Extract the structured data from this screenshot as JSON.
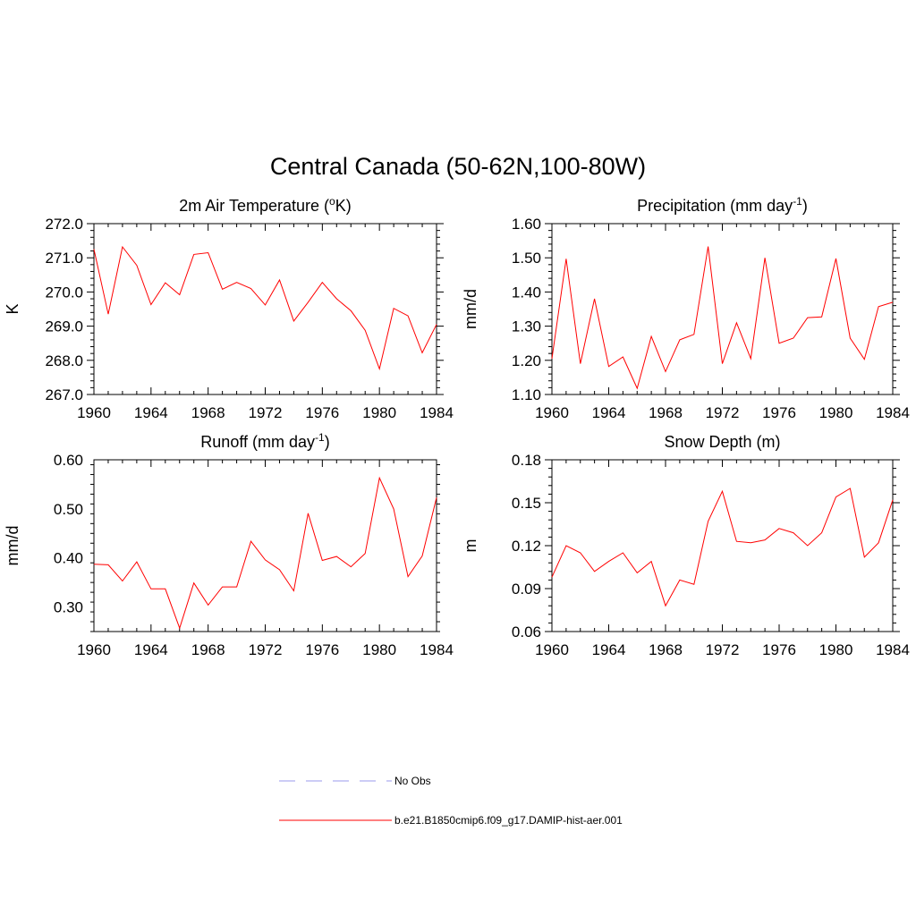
{
  "figure": {
    "title": "Central Canada (50-62N,100-80W)"
  },
  "legend": {
    "items": [
      {
        "label": "No Obs",
        "color": "#9999ee",
        "style": "dashed"
      },
      {
        "label": "b.e21.B1850cmip6.f09_g17.DAMIP-hist-aer.001",
        "color": "#ff0000",
        "style": "solid"
      }
    ]
  },
  "chart_data": [
    {
      "type": "line",
      "title": "2m Air Temperature (°K)",
      "title_parts": {
        "pre": "2m Air Temperature (",
        "sup": "o",
        "post": "K)"
      },
      "xlabel": "",
      "ylabel": "K",
      "xlim": [
        1960,
        1984
      ],
      "ylim": [
        267.0,
        272.0
      ],
      "xticks": [
        1960,
        1964,
        1968,
        1972,
        1976,
        1980,
        1984
      ],
      "xtick_labels": [
        "1960",
        "1964",
        "1968",
        "1972",
        "1976",
        "1980",
        "1984"
      ],
      "yticks": [
        267.0,
        268.0,
        269.0,
        270.0,
        271.0,
        272.0
      ],
      "ytick_labels": [
        "267.0",
        "268.0",
        "269.0",
        "270.0",
        "271.0",
        "272.0"
      ],
      "grid": false,
      "series": [
        {
          "name": "b.e21.B1850cmip6.f09_g17.DAMIP-hist-aer.001",
          "color": "#ff0000",
          "x": [
            1960,
            1961,
            1962,
            1963,
            1964,
            1965,
            1966,
            1967,
            1968,
            1969,
            1970,
            1971,
            1972,
            1973,
            1974,
            1975,
            1976,
            1977,
            1978,
            1979,
            1980,
            1981,
            1982,
            1983,
            1984
          ],
          "values": [
            271.25,
            269.35,
            271.32,
            270.78,
            269.63,
            270.27,
            269.92,
            271.1,
            271.15,
            270.08,
            270.28,
            270.1,
            269.62,
            270.35,
            269.15,
            269.7,
            270.28,
            269.8,
            269.45,
            268.88,
            267.75,
            269.52,
            269.3,
            268.22,
            269.05
          ]
        }
      ]
    },
    {
      "type": "line",
      "title": "Precipitation (mm day-1)",
      "title_parts": {
        "pre": "Precipitation (mm day",
        "sup": "-1",
        "post": ")"
      },
      "xlabel": "",
      "ylabel": "mm/d",
      "xlim": [
        1960,
        1984
      ],
      "ylim": [
        1.1,
        1.6
      ],
      "xticks": [
        1960,
        1964,
        1968,
        1972,
        1976,
        1980,
        1984
      ],
      "xtick_labels": [
        "1960",
        "1964",
        "1968",
        "1972",
        "1976",
        "1980",
        "1984"
      ],
      "yticks": [
        1.1,
        1.2,
        1.3,
        1.4,
        1.5,
        1.6
      ],
      "ytick_labels": [
        "1.10",
        "1.20",
        "1.30",
        "1.40",
        "1.50",
        "1.60"
      ],
      "grid": false,
      "series": [
        {
          "name": "b.e21.B1850cmip6.f09_g17.DAMIP-hist-aer.001",
          "color": "#ff0000",
          "x": [
            1960,
            1961,
            1962,
            1963,
            1964,
            1965,
            1966,
            1967,
            1968,
            1969,
            1970,
            1971,
            1972,
            1973,
            1974,
            1975,
            1976,
            1977,
            1978,
            1979,
            1980,
            1981,
            1982,
            1983,
            1984
          ],
          "values": [
            1.205,
            1.497,
            1.19,
            1.38,
            1.182,
            1.21,
            1.118,
            1.27,
            1.167,
            1.26,
            1.276,
            1.533,
            1.19,
            1.31,
            1.205,
            1.5,
            1.25,
            1.265,
            1.325,
            1.327,
            1.498,
            1.265,
            1.203,
            1.357,
            1.37
          ]
        }
      ]
    },
    {
      "type": "line",
      "title": "Runoff (mm day-1)",
      "title_parts": {
        "pre": "Runoff (mm day",
        "sup": "-1",
        "post": ")"
      },
      "xlabel": "",
      "ylabel": "mm/d",
      "xlim": [
        1960,
        1984
      ],
      "ylim": [
        0.25,
        0.6
      ],
      "xticks": [
        1960,
        1964,
        1968,
        1972,
        1976,
        1980,
        1984
      ],
      "xtick_labels": [
        "1960",
        "1964",
        "1968",
        "1972",
        "1976",
        "1980",
        "1984"
      ],
      "yticks": [
        0.3,
        0.4,
        0.5,
        0.6
      ],
      "ytick_labels": [
        "0.30",
        "0.40",
        "0.50",
        "0.60"
      ],
      "grid": false,
      "series": [
        {
          "name": "b.e21.B1850cmip6.f09_g17.DAMIP-hist-aer.001",
          "color": "#ff0000",
          "x": [
            1960,
            1961,
            1962,
            1963,
            1964,
            1965,
            1966,
            1967,
            1968,
            1969,
            1970,
            1971,
            1972,
            1973,
            1974,
            1975,
            1976,
            1977,
            1978,
            1979,
            1980,
            1981,
            1982,
            1983,
            1984
          ],
          "values": [
            0.387,
            0.386,
            0.353,
            0.392,
            0.337,
            0.337,
            0.257,
            0.349,
            0.304,
            0.341,
            0.341,
            0.434,
            0.396,
            0.376,
            0.333,
            0.491,
            0.395,
            0.403,
            0.382,
            0.409,
            0.563,
            0.5,
            0.362,
            0.404,
            0.523
          ]
        }
      ]
    },
    {
      "type": "line",
      "title": "Snow Depth (m)",
      "title_parts": {
        "pre": "Snow Depth (m)",
        "sup": "",
        "post": ""
      },
      "xlabel": "",
      "ylabel": "m",
      "xlim": [
        1960,
        1984
      ],
      "ylim": [
        0.06,
        0.18
      ],
      "xticks": [
        1960,
        1964,
        1968,
        1972,
        1976,
        1980,
        1984
      ],
      "xtick_labels": [
        "1960",
        "1964",
        "1968",
        "1972",
        "1976",
        "1980",
        "1984"
      ],
      "yticks": [
        0.06,
        0.09,
        0.12,
        0.15,
        0.18
      ],
      "ytick_labels": [
        "0.06",
        "0.09",
        "0.12",
        "0.15",
        "0.18"
      ],
      "grid": false,
      "series": [
        {
          "name": "b.e21.B1850cmip6.f09_g17.DAMIP-hist-aer.001",
          "color": "#ff0000",
          "x": [
            1960,
            1961,
            1962,
            1963,
            1964,
            1965,
            1966,
            1967,
            1968,
            1969,
            1970,
            1971,
            1972,
            1973,
            1974,
            1975,
            1976,
            1977,
            1978,
            1979,
            1980,
            1981,
            1982,
            1983,
            1984
          ],
          "values": [
            0.098,
            0.12,
            0.115,
            0.102,
            0.109,
            0.115,
            0.101,
            0.109,
            0.078,
            0.096,
            0.093,
            0.137,
            0.158,
            0.123,
            0.122,
            0.124,
            0.132,
            0.129,
            0.12,
            0.129,
            0.154,
            0.16,
            0.112,
            0.122,
            0.152
          ]
        }
      ]
    }
  ]
}
